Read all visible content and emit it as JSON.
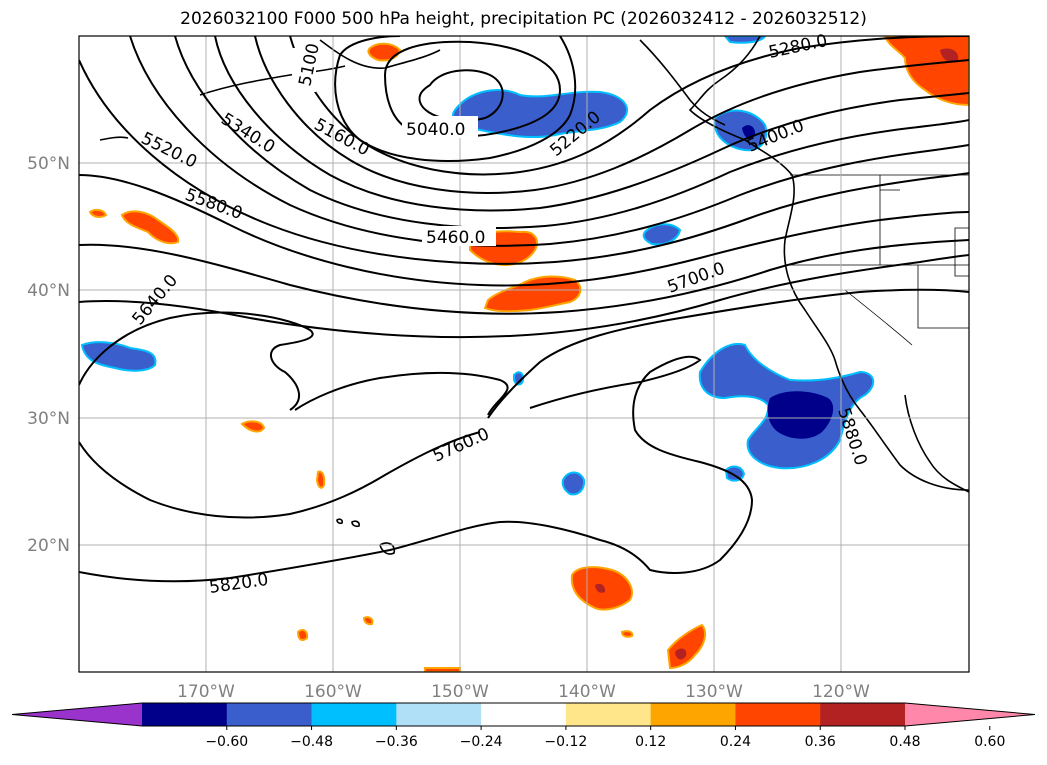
{
  "title": "2026032100 F000 500 hPa height, precipitation PC (2026032412 - 2026032512)",
  "latitude_labels": [
    "50°N",
    "40°N",
    "30°N",
    "20°N"
  ],
  "longitude_labels": [
    "170°W",
    "160°W",
    "150°W",
    "140°W",
    "130°W",
    "120°W"
  ],
  "height_contour_labels": [
    "5100",
    "5040.0",
    "5160.0",
    "5220.0",
    "5280.0",
    "5340.0",
    "5400.0",
    "5460.0",
    "5520.0",
    "5580.0",
    "5640.0",
    "5700.0",
    "5760.0",
    "5820.0",
    "5880.0"
  ],
  "colorbar": {
    "tick_labels": [
      "−0.60",
      "−0.48",
      "−0.36",
      "−0.24",
      "−0.12",
      "0.12",
      "0.24",
      "0.36",
      "0.48",
      "0.60"
    ],
    "colors": [
      "#9a33cc",
      "#00008b",
      "#3a5fcd",
      "#00bfff",
      "#b0e0f8",
      "#ffffff",
      "#ffe68a",
      "#ffa500",
      "#ff4500",
      "#b22222",
      "#ff88aa"
    ]
  },
  "colors": {
    "contour": "#000000",
    "coastline": "#000000",
    "gridline": "#b0b0b0",
    "axis_label": "#808080"
  }
}
